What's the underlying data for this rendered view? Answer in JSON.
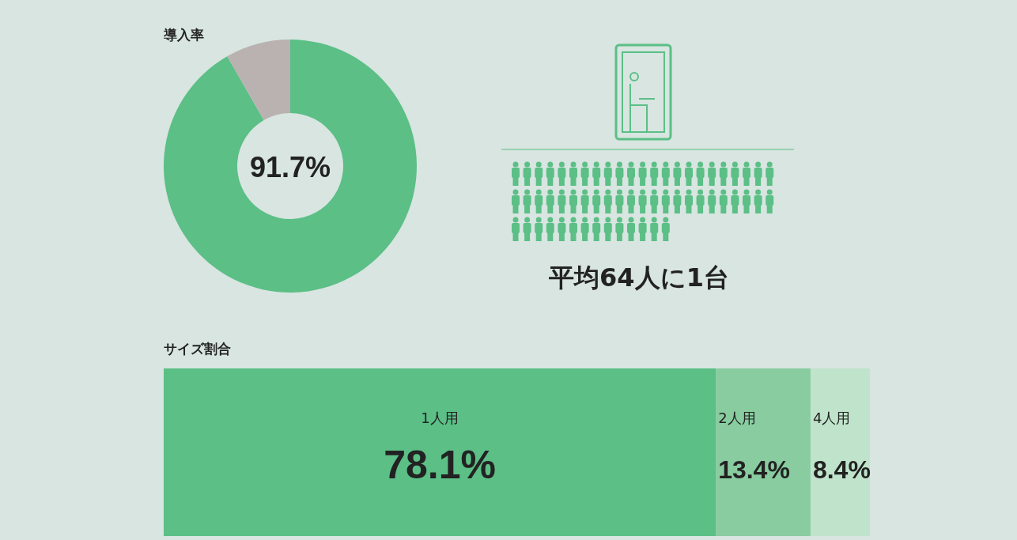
{
  "chart_data": [
    {
      "type": "donut",
      "title": "導入率",
      "categories": [
        null,
        null
      ],
      "values": [
        91.7,
        8.3
      ],
      "colors": [
        "#5bbf86",
        "#b9b2b1"
      ],
      "value_labels": [
        "91.7%",
        null
      ]
    },
    {
      "type": "other",
      "annotations": [
        "平均64人に1台"
      ]
    },
    {
      "type": "bar",
      "orientation": "horizontal",
      "stacked": true,
      "title": "サイズ割合",
      "categories": [
        null
      ],
      "series": [
        {
          "name": "1人用",
          "color": "#5bbf86",
          "values": [
            78.1
          ],
          "value_labels": [
            "78.1%"
          ]
        },
        {
          "name": "2人用",
          "color": "#88cc9f",
          "values": [
            13.4
          ],
          "value_labels": [
            "13.4%"
          ]
        },
        {
          "name": "4人用",
          "color": "#c0e4cb",
          "values": [
            8.4
          ],
          "value_labels": [
            "8.4%"
          ]
        }
      ]
    }
  ]
}
